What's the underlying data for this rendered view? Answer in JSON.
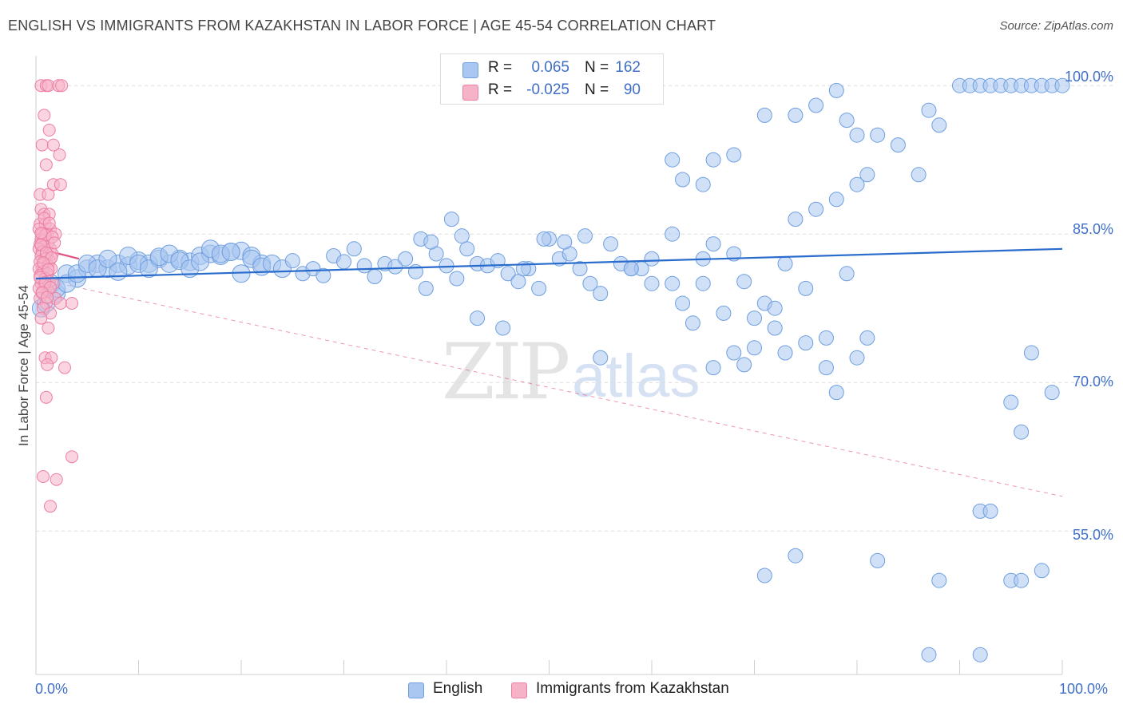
{
  "title": "ENGLISH VS IMMIGRANTS FROM KAZAKHSTAN IN LABOR FORCE | AGE 45-54 CORRELATION CHART",
  "source": "Source: ZipAtlas.com",
  "watermark": {
    "zip": "ZIP",
    "atlas": "atlas"
  },
  "legend": {
    "rows": [
      {
        "r_label": "R =",
        "r_value": "0.065",
        "n_label": "N =",
        "n_value": "162"
      },
      {
        "r_label": "R =",
        "r_value": "-0.025",
        "n_label": "N =",
        "n_value": "90"
      }
    ]
  },
  "colors": {
    "english": "#a9c7f0",
    "english_stroke": "#6f9fe0",
    "english_line": "#2a6ccc",
    "kazakh": "#f6b3c8",
    "kazakh_stroke": "#ec7ea2",
    "kazakh_line": "#e0507f",
    "axis_text": "#3f6fc6",
    "grid": "#dcdcdc"
  },
  "chart_data": {
    "type": "scatter",
    "title": "ENGLISH VS IMMIGRANTS FROM KAZAKHSTAN IN LABOR FORCE | AGE 45-54 CORRELATION CHART",
    "xlabel": "",
    "ylabel": "In Labor Force | Age 45-54",
    "xlim": [
      0,
      100
    ],
    "ylim": [
      40.5,
      103
    ],
    "x_tick_labels": [
      "0.0%",
      "100.0%"
    ],
    "y_ticks": [
      55,
      70,
      85,
      100
    ],
    "y_tick_labels": [
      "55.0%",
      "70.0%",
      "85.0%",
      "100.0%"
    ],
    "series": [
      {
        "name": "English",
        "trend": {
          "x": [
            0,
            100
          ],
          "y": [
            80.5,
            83.5
          ]
        },
        "points": [
          [
            1.5,
            80
          ],
          [
            2,
            79
          ],
          [
            3,
            81
          ],
          [
            4,
            80.5
          ],
          [
            5,
            81.5
          ],
          [
            6,
            82
          ],
          [
            7,
            81.5
          ],
          [
            8,
            82
          ],
          [
            9,
            81.8
          ],
          [
            10,
            82.3
          ],
          [
            11,
            82
          ],
          [
            12,
            82.5
          ],
          [
            13,
            82
          ],
          [
            14,
            82.5
          ],
          [
            15,
            82.2
          ],
          [
            16,
            82.8
          ],
          [
            17,
            83
          ],
          [
            18,
            82.8
          ],
          [
            19,
            83.2
          ],
          [
            20,
            83.3
          ],
          [
            21,
            82.8
          ],
          [
            22,
            82
          ],
          [
            0.5,
            77.5
          ],
          [
            1,
            78
          ],
          [
            2,
            79.5
          ],
          [
            3,
            80
          ],
          [
            4,
            81
          ],
          [
            5,
            82
          ],
          [
            6,
            81.5
          ],
          [
            7,
            82.5
          ],
          [
            8,
            81.2
          ],
          [
            9,
            82.8
          ],
          [
            10,
            82
          ],
          [
            11,
            81.5
          ],
          [
            12,
            82.7
          ],
          [
            13,
            83
          ],
          [
            14,
            82.3
          ],
          [
            15,
            81.5
          ],
          [
            16,
            82.2
          ],
          [
            17,
            83.5
          ],
          [
            18,
            83
          ],
          [
            19,
            83.2
          ],
          [
            20,
            81
          ],
          [
            21,
            82.5
          ],
          [
            22,
            81.7
          ],
          [
            23,
            82
          ],
          [
            24,
            81.5
          ],
          [
            25,
            82.3
          ],
          [
            26,
            81
          ],
          [
            27,
            81.5
          ],
          [
            28,
            80.8
          ],
          [
            29,
            82.8
          ],
          [
            30,
            82.2
          ],
          [
            31,
            83.5
          ],
          [
            32,
            81.8
          ],
          [
            33,
            80.7
          ],
          [
            34,
            82
          ],
          [
            35,
            81.7
          ],
          [
            36,
            82.5
          ],
          [
            37,
            81.2
          ],
          [
            38,
            79.5
          ],
          [
            39,
            83
          ],
          [
            40,
            81.8
          ],
          [
            41,
            80.5
          ],
          [
            42,
            83.5
          ],
          [
            43,
            82
          ],
          [
            44,
            81.8
          ],
          [
            45,
            82.3
          ],
          [
            46,
            81
          ],
          [
            47,
            80.2
          ],
          [
            48,
            81.5
          ],
          [
            49,
            79.5
          ],
          [
            50,
            84.5
          ],
          [
            51,
            82.5
          ],
          [
            52,
            83
          ],
          [
            53,
            81.5
          ],
          [
            54,
            80
          ],
          [
            55,
            79
          ],
          [
            56,
            84
          ],
          [
            57,
            82
          ],
          [
            58,
            81.5
          ],
          [
            59,
            81.5
          ],
          [
            60,
            82.5
          ],
          [
            62,
            80
          ],
          [
            63,
            78
          ],
          [
            64,
            76
          ],
          [
            65,
            80
          ],
          [
            66,
            84
          ],
          [
            67,
            77
          ],
          [
            68,
            83
          ],
          [
            69,
            80.2
          ],
          [
            70,
            76.5
          ],
          [
            71,
            78
          ],
          [
            72,
            77.5
          ],
          [
            73,
            82
          ],
          [
            74,
            86.5
          ],
          [
            75,
            79.5
          ],
          [
            76,
            87.5
          ],
          [
            77,
            74.5
          ],
          [
            78,
            88.5
          ],
          [
            79,
            81
          ],
          [
            80,
            90
          ],
          [
            81,
            91
          ],
          [
            37.5,
            84.5
          ],
          [
            38.5,
            84.2
          ],
          [
            40.5,
            86.5
          ],
          [
            41.5,
            84.8
          ],
          [
            43,
            76.5
          ],
          [
            45.5,
            75.5
          ],
          [
            47.5,
            81.5
          ],
          [
            49.5,
            84.5
          ],
          [
            51.5,
            84.2
          ],
          [
            53.5,
            84.8
          ],
          [
            55,
            72.5
          ],
          [
            58,
            81.5
          ],
          [
            60,
            80
          ],
          [
            62,
            85
          ],
          [
            65,
            82.5
          ],
          [
            66,
            71.5
          ],
          [
            68,
            73
          ],
          [
            69,
            71.8
          ],
          [
            70,
            73.5
          ],
          [
            72,
            75.5
          ],
          [
            73,
            73
          ],
          [
            75,
            74
          ],
          [
            77,
            71.5
          ],
          [
            78,
            69
          ],
          [
            80,
            72.5
          ],
          [
            81,
            74.5
          ],
          [
            62,
            92.5
          ],
          [
            63,
            90.5
          ],
          [
            65,
            90
          ],
          [
            66,
            92.5
          ],
          [
            68,
            93
          ],
          [
            71,
            97
          ],
          [
            74,
            97
          ],
          [
            76,
            98
          ],
          [
            78,
            99.5
          ],
          [
            79,
            96.5
          ],
          [
            80,
            95
          ],
          [
            82,
            95
          ],
          [
            84,
            94
          ],
          [
            86,
            91
          ],
          [
            87,
            97.5
          ],
          [
            88,
            96
          ],
          [
            90,
            100
          ],
          [
            91,
            100
          ],
          [
            92,
            100
          ],
          [
            93,
            100
          ],
          [
            94,
            100
          ],
          [
            95,
            100
          ],
          [
            96,
            100
          ],
          [
            97,
            100
          ],
          [
            98,
            100
          ],
          [
            99,
            100
          ],
          [
            100,
            100
          ],
          [
            71,
            50.5
          ],
          [
            74,
            52.5
          ],
          [
            82,
            52
          ],
          [
            88,
            50
          ],
          [
            95,
            50
          ],
          [
            96,
            50
          ],
          [
            98,
            51
          ],
          [
            87,
            42.5
          ],
          [
            92,
            42.5
          ],
          [
            92,
            57
          ],
          [
            93,
            57
          ],
          [
            97,
            73
          ],
          [
            96,
            65
          ],
          [
            99,
            69
          ],
          [
            95,
            68
          ]
        ]
      },
      {
        "name": "Immigrants from Kazakhstan",
        "trend": {
          "x": [
            0,
            4.2
          ],
          "y": [
            83.6,
            82.5
          ]
        },
        "points": [
          [
            0.5,
            100
          ],
          [
            1,
            100
          ],
          [
            1.2,
            100
          ],
          [
            2.2,
            100
          ],
          [
            2.5,
            100
          ],
          [
            0.8,
            97
          ],
          [
            1.3,
            95.5
          ],
          [
            0.6,
            94
          ],
          [
            1.7,
            94
          ],
          [
            1,
            92
          ],
          [
            2.3,
            93
          ],
          [
            0.4,
            89
          ],
          [
            1.2,
            89
          ],
          [
            1.7,
            90
          ],
          [
            2.4,
            90
          ],
          [
            0.5,
            87.5
          ],
          [
            0.8,
            87
          ],
          [
            1.3,
            87
          ],
          [
            0.4,
            86
          ],
          [
            0.9,
            86
          ],
          [
            1.4,
            85.5
          ],
          [
            0.3,
            85.5
          ],
          [
            0.6,
            85
          ],
          [
            1.1,
            85
          ],
          [
            1.9,
            85
          ],
          [
            0.5,
            84.5
          ],
          [
            0.7,
            84.3
          ],
          [
            1.2,
            84.2
          ],
          [
            0.4,
            84
          ],
          [
            0.8,
            83.8
          ],
          [
            1.4,
            83.5
          ],
          [
            0.3,
            83.5
          ],
          [
            0.6,
            83.2
          ],
          [
            1.1,
            83
          ],
          [
            1.6,
            83
          ],
          [
            0.5,
            82.8
          ],
          [
            0.9,
            82.5
          ],
          [
            1.3,
            82.3
          ],
          [
            0.4,
            82.2
          ],
          [
            0.8,
            82
          ],
          [
            1.2,
            81.8
          ],
          [
            0.6,
            81.5
          ],
          [
            0.3,
            81.5
          ],
          [
            1.5,
            81.5
          ],
          [
            0.7,
            81.2
          ],
          [
            1.1,
            81
          ],
          [
            0.4,
            80.8
          ],
          [
            0.9,
            80.5
          ],
          [
            1.3,
            80.2
          ],
          [
            0.5,
            80
          ],
          [
            1.7,
            80
          ],
          [
            0.8,
            79.8
          ],
          [
            0.3,
            79.5
          ],
          [
            1.2,
            79.2
          ],
          [
            0.6,
            79
          ],
          [
            1.9,
            78.5
          ],
          [
            0.4,
            78.5
          ],
          [
            1,
            78
          ],
          [
            2.4,
            78
          ],
          [
            3.5,
            78
          ],
          [
            0.7,
            77.5
          ],
          [
            1.4,
            77
          ],
          [
            0.5,
            76.5
          ],
          [
            1.2,
            75.5
          ],
          [
            0.9,
            72.5
          ],
          [
            1.5,
            72.5
          ],
          [
            1.1,
            71.8
          ],
          [
            2.8,
            71.5
          ],
          [
            1,
            68.5
          ],
          [
            3.5,
            62.5
          ],
          [
            0.7,
            60.5
          ],
          [
            2,
            60.2
          ],
          [
            1.4,
            57.5
          ],
          [
            0.9,
            84.9
          ],
          [
            1.6,
            84.7
          ],
          [
            0.5,
            83.9
          ],
          [
            1,
            83.1
          ],
          [
            1.5,
            82.6
          ],
          [
            0.7,
            82.1
          ],
          [
            1.2,
            81.4
          ],
          [
            0.4,
            80.6
          ],
          [
            0.9,
            80.1
          ],
          [
            1.4,
            79.6
          ],
          [
            0.6,
            79.1
          ],
          [
            1.1,
            78.6
          ],
          [
            0.8,
            86.6
          ],
          [
            1.3,
            86.1
          ],
          [
            0.5,
            85.1
          ],
          [
            1.8,
            84.1
          ]
        ]
      }
    ]
  },
  "bottom_legend": [
    {
      "label": "English"
    },
    {
      "label": "Immigrants from Kazakhstan"
    }
  ]
}
